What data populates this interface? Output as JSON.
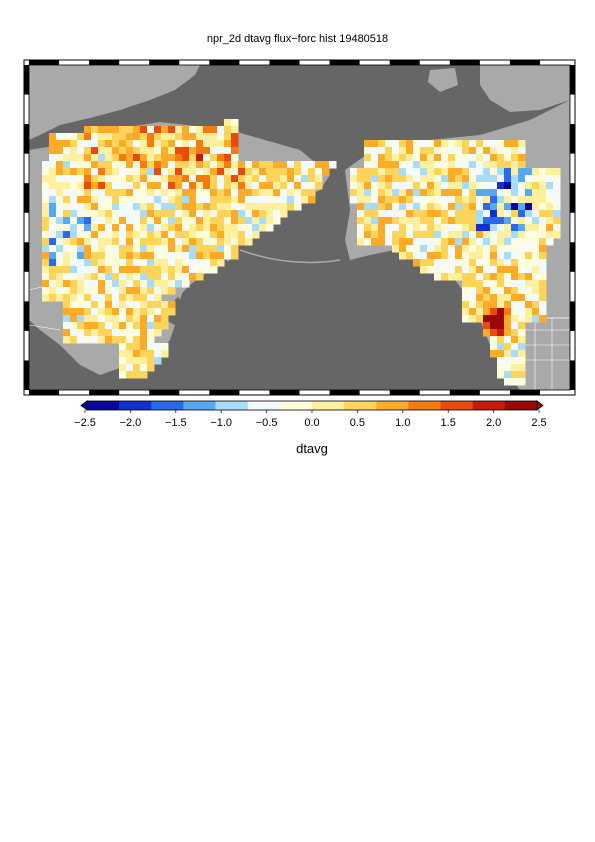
{
  "title": "npr_2d dtavg flux−forc hist 19480518",
  "colorbar": {
    "label": "dtavg",
    "min": -2.5,
    "max": 2.5,
    "ticks": [
      "−2.5",
      "−2.0",
      "−1.5",
      "−1.0",
      "−0.5",
      "0.0",
      "0.5",
      "1.0",
      "1.5",
      "2.0",
      "2.5"
    ],
    "palette": [
      "#08089a",
      "#1030d0",
      "#2a6ae8",
      "#56a8f0",
      "#a8dcf8",
      "#f4fbff",
      "#fffde0",
      "#fff0a0",
      "#ffd45a",
      "#ffab2a",
      "#f57a10",
      "#e84c0c",
      "#c81a0a",
      "#9c0808"
    ]
  },
  "colors": {
    "ocean": "#666666",
    "land": "#a9a9a9",
    "border": "#ffffff"
  }
}
